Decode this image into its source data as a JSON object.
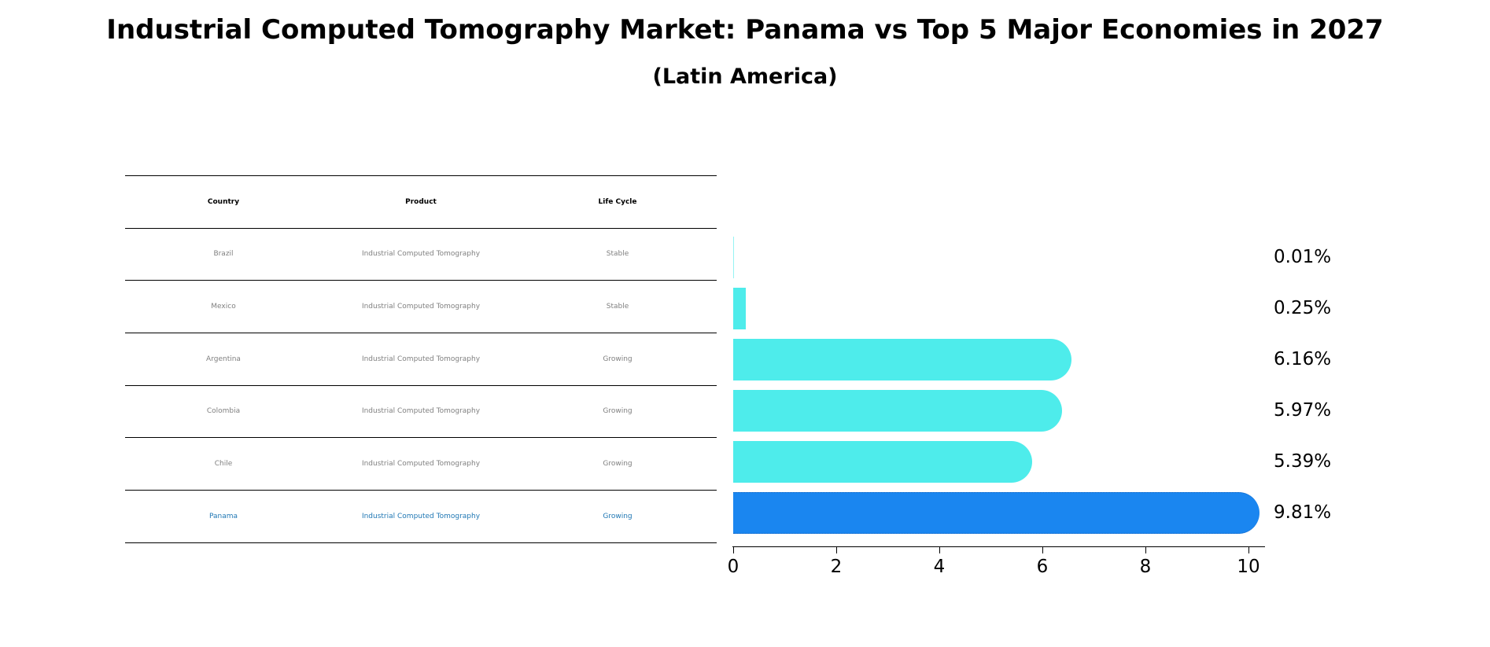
{
  "title": "Industrial Computed Tomography Market: Panama vs Top 5 Major Economies in 2027",
  "subtitle": "(Latin America)",
  "table": {
    "headers": [
      "Country",
      "Product",
      "Life Cycle"
    ],
    "rows": [
      {
        "country": "Brazil",
        "product": "Industrial Computed Tomography",
        "life_cycle": "Stable",
        "highlight": false
      },
      {
        "country": "Mexico",
        "product": "Industrial Computed Tomography",
        "life_cycle": "Stable",
        "highlight": false
      },
      {
        "country": "Argentina",
        "product": "Industrial Computed Tomography",
        "life_cycle": "Growing",
        "highlight": false
      },
      {
        "country": "Colombia",
        "product": "Industrial Computed Tomography",
        "life_cycle": "Growing",
        "highlight": false
      },
      {
        "country": "Chile",
        "product": "Industrial Computed Tomography",
        "life_cycle": "Growing",
        "highlight": false
      },
      {
        "country": "Panama",
        "product": "Industrial Computed Tomography",
        "life_cycle": "Growing",
        "highlight": true
      }
    ]
  },
  "colors": {
    "bar_default": "#4eeceb",
    "bar_focus": "#1a86f0",
    "text_default": "#808080",
    "text_focus": "#1f77b4"
  },
  "chart_data": {
    "type": "bar",
    "orientation": "horizontal",
    "title": "Industrial Computed Tomography Market: Panama vs Top 5 Major Economies in 2027",
    "subtitle": "(Latin America)",
    "categories": [
      "Brazil",
      "Mexico",
      "Argentina",
      "Colombia",
      "Chile",
      "Panama"
    ],
    "values": [
      0.01,
      0.25,
      6.16,
      5.97,
      5.39,
      9.81
    ],
    "value_labels": [
      "0.01%",
      "0.25%",
      "6.16%",
      "5.97%",
      "5.39%",
      "9.81%"
    ],
    "xlabel": "",
    "ylabel": "",
    "xlim": [
      0,
      10.3
    ],
    "xticks": [
      0,
      2,
      4,
      6,
      8,
      10
    ],
    "grid": false,
    "legend": null,
    "highlight": "Panama"
  }
}
